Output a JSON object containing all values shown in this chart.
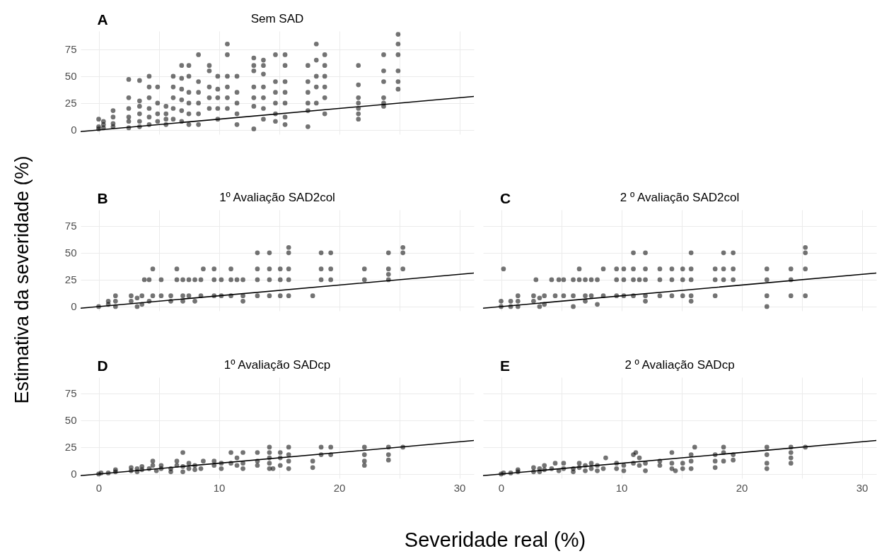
{
  "chart_data": [
    {
      "type": "scatter",
      "title": "Sem SAD",
      "annotations": [
        "A"
      ],
      "xlim": [
        -1.5,
        31.2
      ],
      "ylim": [
        -4,
        92
      ],
      "xticks": [
        0,
        {
          "value": 5,
          "label": null
        },
        10,
        {
          "value": 15,
          "label": null
        },
        20,
        {
          "value": 25,
          "label": null
        },
        30
      ],
      "yticks": [
        0,
        25,
        50,
        75
      ],
      "grid": true,
      "tick_labels": "y",
      "series": [
        {
          "type": "scatter",
          "marker": "circle",
          "color": "#000000",
          "x": [
            0,
            0,
            0,
            0.4,
            0.4,
            0.4,
            1.2,
            1.2,
            1.2,
            1.2,
            2.5,
            2.5,
            2.5,
            2.5,
            2.5,
            2.5,
            3.4,
            3.4,
            3.4,
            3.4,
            3.4,
            3.4,
            4.2,
            4.2,
            4.2,
            4.2,
            4.2,
            4.2,
            4.9,
            4.9,
            4.9,
            4.9,
            5.6,
            5.6,
            5.6,
            5.6,
            6.2,
            6.2,
            6.2,
            6.2,
            6.2,
            6.9,
            6.9,
            6.9,
            6.9,
            6.9,
            6.9,
            7.5,
            7.5,
            7.5,
            7.5,
            7.5,
            7.5,
            8.3,
            8.3,
            8.3,
            8.3,
            8.3,
            8.3,
            9.2,
            9.2,
            9.2,
            9.2,
            9.2,
            9.9,
            9.9,
            9.9,
            9.9,
            9.9,
            10.7,
            10.7,
            10.7,
            10.7,
            10.7,
            10.7,
            11.5,
            11.5,
            11.5,
            11.5,
            11.5,
            12.9,
            12.9,
            12.9,
            12.9,
            12.9,
            12.9,
            12.9,
            13.7,
            13.7,
            13.7,
            13.7,
            13.7,
            13.7,
            13.7,
            14.7,
            14.7,
            14.7,
            14.7,
            14.7,
            14.7,
            15.5,
            15.5,
            15.5,
            15.5,
            15.5,
            15.5,
            15.5,
            17.4,
            17.4,
            17.4,
            17.4,
            17.4,
            17.4,
            18.1,
            18.1,
            18.1,
            18.1,
            18.1,
            18.8,
            18.8,
            18.8,
            18.8,
            18.8,
            18.8,
            21.6,
            21.6,
            21.6,
            21.6,
            21.6,
            21.6,
            21.6,
            23.7,
            23.7,
            23.7,
            23.7,
            23.7,
            23.7,
            24.9,
            24.9,
            24.9,
            24.9,
            24.9,
            24.9
          ],
          "values": [
            1,
            3,
            10,
            2,
            5,
            8,
            3,
            6,
            12,
            18,
            2,
            8,
            12,
            20,
            30,
            47,
            3,
            8,
            15,
            22,
            27,
            46,
            5,
            12,
            20,
            30,
            40,
            50,
            8,
            15,
            25,
            40,
            5,
            10,
            15,
            22,
            10,
            20,
            30,
            40,
            50,
            8,
            18,
            28,
            38,
            48,
            60,
            5,
            15,
            25,
            35,
            50,
            60,
            5,
            15,
            25,
            35,
            45,
            70,
            20,
            30,
            40,
            55,
            60,
            10,
            20,
            30,
            38,
            50,
            20,
            30,
            40,
            50,
            70,
            80,
            5,
            15,
            25,
            35,
            50,
            1,
            22,
            30,
            40,
            55,
            60,
            67,
            10,
            20,
            30,
            40,
            52,
            60,
            65,
            8,
            15,
            25,
            35,
            45,
            70,
            5,
            12,
            25,
            35,
            45,
            60,
            70,
            3,
            18,
            25,
            35,
            45,
            60,
            25,
            40,
            50,
            65,
            80,
            15,
            30,
            40,
            50,
            60,
            70,
            10,
            15,
            20,
            25,
            30,
            42,
            60,
            22,
            25,
            30,
            45,
            55,
            70,
            38,
            45,
            55,
            70,
            80,
            89
          ]
        },
        {
          "type": "line",
          "color": "#000000",
          "x": [
            -1.5,
            31.2
          ],
          "values": [
            -1.5,
            31.2
          ]
        }
      ]
    },
    {
      "type": "scatter",
      "title": "1º Avaliação  SAD2col",
      "ylabel": "Estimativa da severidade (%)",
      "annotations": [
        "B"
      ],
      "xlim": [
        -1.5,
        31.2
      ],
      "ylim": [
        -4,
        90
      ],
      "xticks": [
        0,
        {
          "value": 5,
          "label": null
        },
        10,
        {
          "value": 15,
          "label": null
        },
        20,
        {
          "value": 25,
          "label": null
        },
        30
      ],
      "yticks": [
        0,
        25,
        50,
        75
      ],
      "grid": true,
      "tick_labels": "y",
      "series": [
        {
          "type": "scatter",
          "marker": "circle",
          "color": "#000000",
          "x": [
            0,
            0.8,
            0.8,
            1.4,
            1.4,
            1.4,
            2.7,
            2.7,
            3.2,
            3.2,
            3.6,
            3.6,
            3.8,
            4.2,
            4.2,
            4.5,
            4.5,
            5.2,
            5.2,
            6,
            6,
            6.5,
            6.5,
            7,
            7,
            7,
            7.5,
            7.5,
            8,
            8,
            8.5,
            8.5,
            8.7,
            9.6,
            9.6,
            9.6,
            10.2,
            10.2,
            11,
            11,
            11,
            11.5,
            12,
            12,
            12,
            13.2,
            13.2,
            13.2,
            13.2,
            14.2,
            14.2,
            14.2,
            14.2,
            15.1,
            15.1,
            15.1,
            15.8,
            15.8,
            15.8,
            15.8,
            15.8,
            17.8,
            18.5,
            18.5,
            18.5,
            19.3,
            19.3,
            19.3,
            22.1,
            22.1,
            24.1,
            24.1,
            24.1,
            24.1,
            25.3,
            25.3,
            25.3
          ],
          "values": [
            0,
            2,
            5,
            0,
            5,
            10,
            5,
            10,
            0,
            8,
            2,
            10,
            25,
            5,
            25,
            10,
            35,
            10,
            25,
            5,
            10,
            25,
            35,
            5,
            10,
            25,
            10,
            25,
            5,
            25,
            10,
            25,
            35,
            10,
            25,
            35,
            10,
            25,
            10,
            25,
            35,
            25,
            5,
            10,
            25,
            10,
            25,
            35,
            50,
            10,
            25,
            35,
            50,
            10,
            25,
            35,
            10,
            25,
            35,
            50,
            55,
            10,
            25,
            35,
            50,
            25,
            35,
            50,
            25,
            35,
            25,
            30,
            35,
            50,
            35,
            50,
            55
          ]
        },
        {
          "type": "line",
          "color": "#000000",
          "x": [
            -1.5,
            31.2
          ],
          "values": [
            -1.5,
            31.2
          ]
        }
      ]
    },
    {
      "type": "scatter",
      "title": "2 º Avaliação  SAD2col",
      "annotations": [
        "C"
      ],
      "xlim": [
        -1.5,
        31.2
      ],
      "ylim": [
        -4,
        90
      ],
      "xticks": [
        0,
        {
          "value": 5,
          "label": null
        },
        10,
        {
          "value": 15,
          "label": null
        },
        20,
        {
          "value": 25,
          "label": null
        },
        30
      ],
      "yticks": [
        0,
        25,
        50,
        75
      ],
      "grid": true,
      "tick_labels": false,
      "series": [
        {
          "type": "scatter",
          "marker": "circle",
          "color": "#000000",
          "x": [
            0,
            0,
            0.2,
            0.8,
            0.8,
            1.4,
            1.4,
            1.4,
            2.7,
            2.7,
            2.9,
            3.2,
            3.2,
            3.6,
            3.6,
            4.2,
            4.5,
            4.8,
            5.2,
            5.2,
            6,
            6,
            6,
            6.5,
            6.5,
            7,
            7,
            7,
            7.5,
            7.5,
            8,
            8,
            8.5,
            8.5,
            9.6,
            9.6,
            9.6,
            10.2,
            10.2,
            10.2,
            11,
            11,
            11,
            11,
            11.5,
            12,
            12,
            12,
            12,
            12,
            13.2,
            13.2,
            13.2,
            14.2,
            14.2,
            14.2,
            15.1,
            15.1,
            15.1,
            15.8,
            15.8,
            15.8,
            15.8,
            15.8,
            17.8,
            17.8,
            17.8,
            18.5,
            18.5,
            18.5,
            19.3,
            19.3,
            19.3,
            22.1,
            22.1,
            22.1,
            22.1,
            24.1,
            24.1,
            24.1,
            25.3,
            25.3,
            25.3,
            25.3
          ],
          "values": [
            0,
            5,
            35,
            0,
            5,
            0,
            5,
            10,
            5,
            10,
            25,
            0,
            8,
            2,
            10,
            25,
            10,
            25,
            10,
            25,
            0,
            10,
            25,
            25,
            35,
            5,
            10,
            25,
            10,
            25,
            2,
            25,
            10,
            35,
            10,
            25,
            35,
            10,
            25,
            35,
            10,
            25,
            35,
            50,
            25,
            5,
            10,
            25,
            35,
            50,
            10,
            25,
            35,
            10,
            25,
            35,
            10,
            25,
            35,
            5,
            10,
            25,
            35,
            50,
            10,
            25,
            35,
            25,
            35,
            50,
            25,
            35,
            50,
            0,
            10,
            25,
            35,
            10,
            25,
            35,
            10,
            35,
            50,
            55
          ]
        },
        {
          "type": "line",
          "color": "#000000",
          "x": [
            -1.5,
            31.2
          ],
          "values": [
            -1.5,
            31.2
          ]
        }
      ]
    },
    {
      "type": "scatter",
      "title": "1º Avaliação  SADcp",
      "xlabel": "Severidade real (%)",
      "annotations": [
        "D"
      ],
      "xlim": [
        -1.5,
        31.2
      ],
      "ylim": [
        -4,
        90
      ],
      "xticks": [
        0,
        {
          "value": 5,
          "label": null
        },
        10,
        {
          "value": 15,
          "label": null
        },
        20,
        {
          "value": 25,
          "label": null
        },
        30
      ],
      "yticks": [
        0,
        25,
        50,
        75
      ],
      "grid": true,
      "series": [
        {
          "type": "scatter",
          "marker": "circle",
          "color": "#000000",
          "x": [
            0,
            0.2,
            0.8,
            1.4,
            1.4,
            2.7,
            2.7,
            3.2,
            3.2,
            3.6,
            3.6,
            4.2,
            4.5,
            4.5,
            4.8,
            5.2,
            5.2,
            6,
            6,
            6.5,
            6.5,
            7,
            7,
            7,
            7.5,
            7.5,
            8,
            8,
            8.5,
            8.7,
            9.6,
            9.6,
            10.2,
            10.2,
            11,
            11,
            11.5,
            11.5,
            12,
            12,
            12,
            13.2,
            13.2,
            13.2,
            14.2,
            14.2,
            14.2,
            14.2,
            14.2,
            14.5,
            15.1,
            15.1,
            15.1,
            15.8,
            15.8,
            15.8,
            15.8,
            17.8,
            17.8,
            18.5,
            18.5,
            19.3,
            19.3,
            22.1,
            22.1,
            22.1,
            22.1,
            24.1,
            24.1,
            24.1,
            25.3
          ],
          "values": [
            0,
            1,
            1,
            2,
            4,
            3,
            6,
            2,
            5,
            4,
            7,
            5,
            8,
            12,
            3,
            5,
            8,
            2,
            5,
            8,
            12,
            2,
            7,
            20,
            5,
            10,
            4,
            8,
            5,
            12,
            8,
            12,
            5,
            10,
            10,
            20,
            8,
            15,
            5,
            10,
            20,
            8,
            12,
            20,
            5,
            10,
            15,
            20,
            25,
            5,
            8,
            15,
            20,
            5,
            12,
            18,
            25,
            6,
            12,
            18,
            25,
            18,
            25,
            8,
            12,
            18,
            25,
            13,
            18,
            25,
            25
          ]
        },
        {
          "type": "line",
          "color": "#000000",
          "x": [
            -1.5,
            31.2
          ],
          "values": [
            -1.5,
            31.2
          ]
        }
      ]
    },
    {
      "type": "scatter",
      "title": "2 º Avaliação  SADcp",
      "annotations": [
        "E"
      ],
      "xlim": [
        -1.5,
        31.2
      ],
      "ylim": [
        -4,
        90
      ],
      "xticks": [
        0,
        {
          "value": 5,
          "label": null
        },
        10,
        {
          "value": 15,
          "label": null
        },
        20,
        {
          "value": 25,
          "label": null
        },
        30
      ],
      "yticks": [
        0,
        25,
        50,
        75
      ],
      "grid": true,
      "tick_labels": "x",
      "series": [
        {
          "type": "scatter",
          "marker": "circle",
          "color": "#000000",
          "x": [
            0,
            0.2,
            0.8,
            1.4,
            1.4,
            2.7,
            2.7,
            3.2,
            3.2,
            3.6,
            3.6,
            4.2,
            4.5,
            4.8,
            5.2,
            5.2,
            6,
            6,
            6.5,
            6.5,
            7,
            7,
            7.5,
            7.5,
            8,
            8,
            8.5,
            8.7,
            9.6,
            9.6,
            10.2,
            10.2,
            11,
            11,
            11.2,
            11.5,
            11.5,
            12,
            12,
            13.2,
            13.2,
            14.2,
            14.2,
            14.2,
            14.5,
            15.1,
            15.1,
            15.8,
            15.8,
            15.8,
            16.1,
            17.8,
            17.8,
            17.8,
            18.5,
            18.5,
            18.5,
            19.3,
            19.3,
            22.1,
            22.1,
            22.1,
            22.1,
            24.1,
            24.1,
            24.1,
            24.1,
            25.3
          ],
          "values": [
            0,
            1,
            1,
            2,
            4,
            2,
            6,
            2,
            5,
            4,
            8,
            5,
            10,
            3,
            5,
            10,
            2,
            5,
            6,
            10,
            3,
            8,
            5,
            10,
            3,
            8,
            5,
            15,
            5,
            10,
            3,
            8,
            10,
            18,
            20,
            8,
            15,
            3,
            10,
            8,
            12,
            5,
            10,
            20,
            3,
            5,
            10,
            5,
            12,
            18,
            25,
            6,
            12,
            18,
            12,
            20,
            25,
            13,
            18,
            5,
            10,
            18,
            25,
            10,
            15,
            20,
            25,
            25
          ]
        },
        {
          "type": "line",
          "color": "#000000",
          "x": [
            -1.5,
            31.2
          ],
          "values": [
            -1.5,
            31.2
          ]
        }
      ]
    }
  ]
}
